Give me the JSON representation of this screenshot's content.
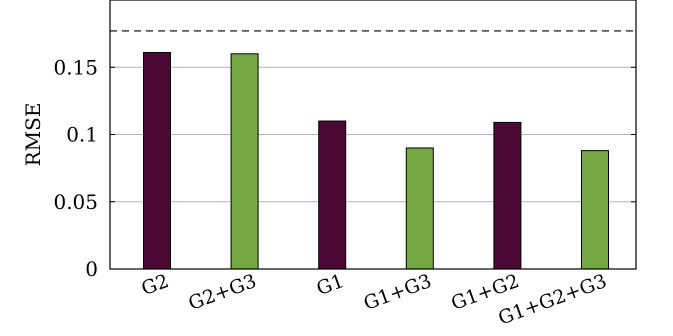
{
  "chart_data": {
    "type": "bar",
    "categories": [
      "G2",
      "G2+G3",
      "G1",
      "G1+G3",
      "G1+G2",
      "G1+G2+G3"
    ],
    "values": [
      0.161,
      0.16,
      0.11,
      0.09,
      0.109,
      0.088
    ],
    "bar_colors": [
      "#4a0a34",
      "#76a844",
      "#4a0a34",
      "#76a844",
      "#4a0a34",
      "#76a844"
    ],
    "reference_line": 0.177,
    "title": "",
    "xlabel": "",
    "ylabel": "RMSE",
    "ylim": [
      0,
      0.2
    ],
    "yticks": [
      0,
      0.05,
      0.1,
      0.15
    ],
    "ytick_labels": [
      "0",
      "0.05",
      "0.1",
      "0.15"
    ],
    "grid": "horizontal",
    "legend": "none"
  }
}
